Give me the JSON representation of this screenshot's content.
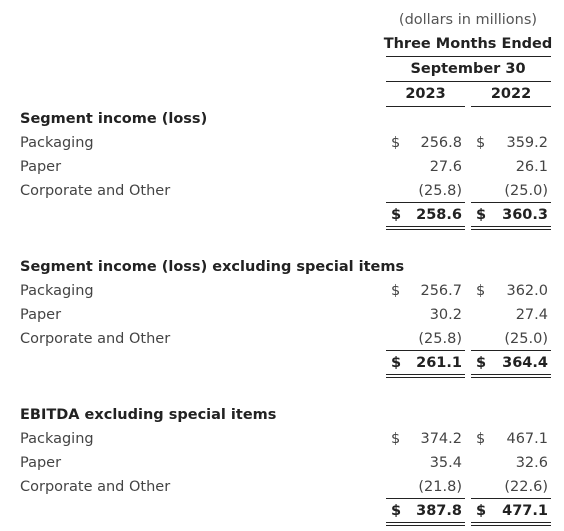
{
  "header": {
    "units": "(dollars in millions)",
    "period": "Three Months Ended",
    "date": "September 30",
    "years": [
      "2023",
      "2022"
    ]
  },
  "sections": [
    {
      "title": "Segment income (loss)",
      "rows": [
        {
          "label": "Packaging",
          "currency": "$",
          "values": [
            "256.8",
            "359.2"
          ]
        },
        {
          "label": "Paper",
          "values": [
            "27.6",
            "26.1"
          ]
        },
        {
          "label": "Corporate and Other",
          "values": [
            "(25.8)",
            "(25.0)"
          ]
        }
      ],
      "total": {
        "currency": "$",
        "values": [
          "258.6",
          "360.3"
        ]
      }
    },
    {
      "title": "Segment income (loss) excluding special items",
      "rows": [
        {
          "label": "Packaging",
          "currency": "$",
          "values": [
            "256.7",
            "362.0"
          ]
        },
        {
          "label": "Paper",
          "values": [
            "30.2",
            "27.4"
          ]
        },
        {
          "label": "Corporate and Other",
          "values": [
            "(25.8)",
            "(25.0)"
          ]
        }
      ],
      "total": {
        "currency": "$",
        "values": [
          "261.1",
          "364.4"
        ]
      }
    },
    {
      "title": "EBITDA excluding special items",
      "rows": [
        {
          "label": "Packaging",
          "currency": "$",
          "values": [
            "374.2",
            "467.1"
          ]
        },
        {
          "label": "Paper",
          "values": [
            "35.4",
            "32.6"
          ]
        },
        {
          "label": "Corporate and Other",
          "values": [
            "(21.8)",
            "(22.6)"
          ]
        }
      ],
      "total": {
        "currency": "$",
        "values": [
          "387.8",
          "477.1"
        ]
      }
    }
  ]
}
